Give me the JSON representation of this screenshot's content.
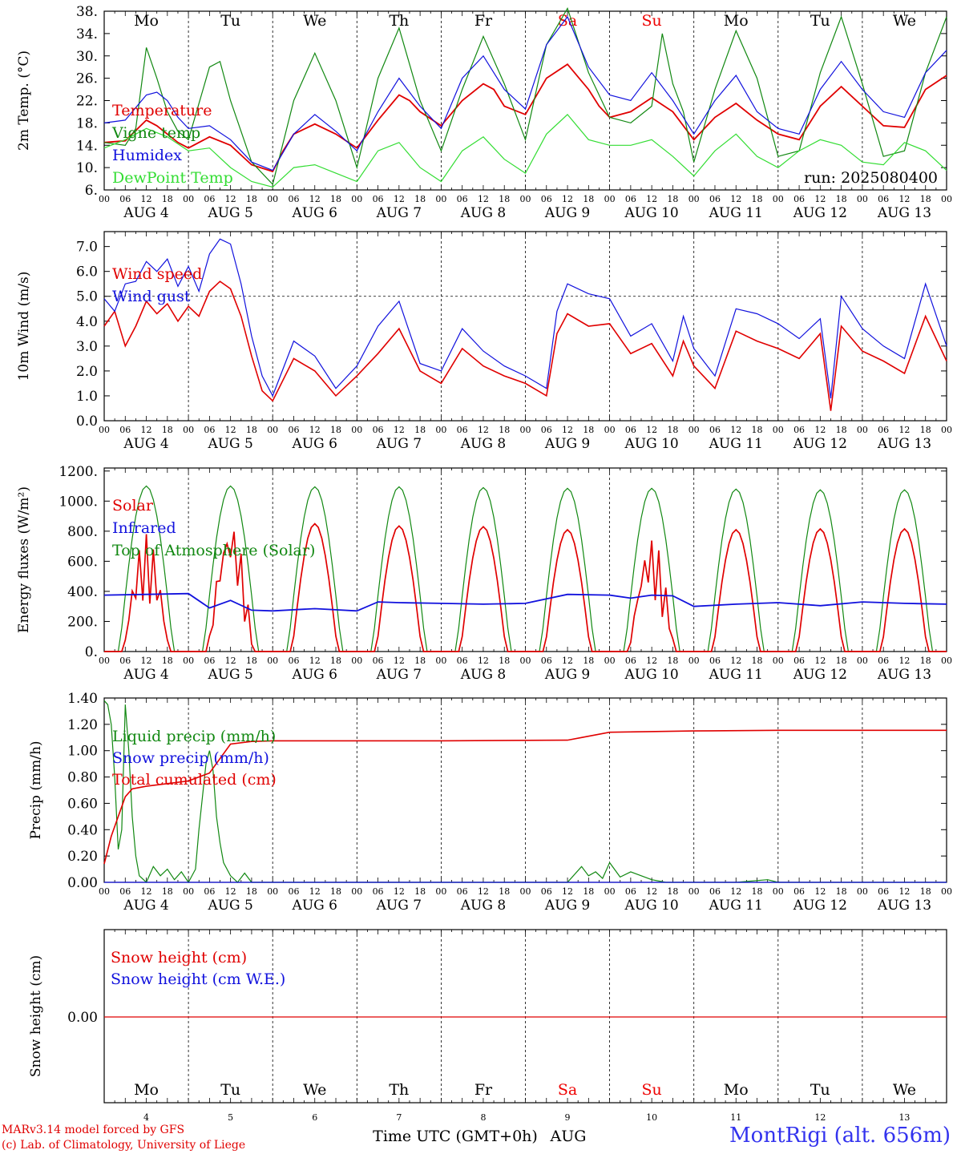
{
  "days": [
    "Mo",
    "Tu",
    "We",
    "Th",
    "Fr",
    "Sa",
    "Su",
    "Mo",
    "Tu",
    "We"
  ],
  "weekend_color": "#ee0000",
  "date_labels": [
    "AUG  4",
    "AUG  5",
    "AUG  6",
    "AUG  7",
    "AUG  8",
    "AUG  9",
    "AUG 10",
    "AUG 11",
    "AUG 12",
    "AUG 13"
  ],
  "hour_labels": [
    "00",
    "06",
    "12",
    "18"
  ],
  "bottom_dates": [
    "4",
    "5",
    "6",
    "7",
    "8",
    "9",
    "10",
    "11",
    "12",
    "13"
  ],
  "xlabel": "Time UTC (GMT+0h)",
  "xlabel_month": "AUG",
  "run_label": "run: 2025080400",
  "credits": [
    "MARv3.14 model forced by GFS",
    "(c) Lab. of Climatology, University of Liege"
  ],
  "station": "MontRigi (alt. 656m)",
  "chart_data": [
    {
      "type": "line",
      "ylabel": "2m Temp. (°C)",
      "yticks": [
        "38.",
        "34.",
        "30.",
        "26.",
        "22.",
        "18.",
        "14.",
        "10.",
        "6."
      ],
      "ylim": [
        6,
        38
      ],
      "x_unit": "hours since AUG 4 00 UTC",
      "grid": "vertical dashed at day boundaries",
      "series": [
        {
          "name": "Temperature",
          "color": "#e00000",
          "x": [
            0,
            6,
            12,
            15,
            18,
            21,
            24,
            30,
            36,
            42,
            48,
            51,
            54,
            60,
            66,
            72,
            78,
            84,
            87,
            90,
            96,
            102,
            108,
            111,
            114,
            120,
            126,
            132,
            138,
            141,
            144,
            150,
            156,
            162,
            168,
            174,
            180,
            186,
            192,
            198,
            204,
            210,
            216,
            222,
            228,
            234,
            240
          ],
          "y": [
            14.5,
            14.8,
            18.5,
            17.5,
            16,
            14.5,
            13.5,
            15.5,
            14,
            10.5,
            9.3,
            13,
            16,
            17.8,
            16,
            13.5,
            18.5,
            23,
            22,
            20,
            17.5,
            22,
            25,
            24,
            21,
            19.5,
            26,
            28.5,
            24,
            21,
            19,
            20,
            22.5,
            20,
            15,
            19,
            21.5,
            18.5,
            16,
            15,
            21,
            24.5,
            21,
            17.5,
            17.2,
            24,
            26.5
          ]
        },
        {
          "name": "Vigne temp",
          "color": "#118811",
          "x": [
            0,
            6,
            9,
            12,
            15,
            18,
            21,
            24,
            30,
            33,
            36,
            42,
            48,
            54,
            60,
            66,
            72,
            78,
            84,
            90,
            96,
            102,
            108,
            114,
            120,
            126,
            132,
            138,
            144,
            150,
            156,
            159,
            162,
            165,
            168,
            174,
            180,
            186,
            192,
            198,
            204,
            210,
            216,
            222,
            228,
            234,
            240
          ],
          "y": [
            14.5,
            14,
            17,
            31.5,
            26,
            20,
            16.5,
            15,
            28,
            29,
            22,
            11,
            7,
            22,
            30.5,
            22,
            10,
            26,
            35,
            22,
            13,
            24,
            33.5,
            25,
            15,
            32,
            38.5,
            27,
            19,
            18,
            21,
            34,
            25,
            20,
            11,
            24,
            34.5,
            26,
            12,
            13,
            27,
            37,
            25,
            12,
            13,
            27,
            37
          ]
        },
        {
          "name": "Humidex",
          "color": "#1111dd",
          "x": [
            0,
            6,
            12,
            15,
            18,
            21,
            24,
            30,
            36,
            42,
            48,
            54,
            60,
            66,
            72,
            78,
            84,
            90,
            96,
            102,
            108,
            114,
            120,
            126,
            132,
            138,
            144,
            150,
            156,
            162,
            168,
            174,
            180,
            186,
            192,
            198,
            204,
            210,
            216,
            222,
            228,
            234,
            240
          ],
          "y": [
            18,
            18.5,
            23,
            23.5,
            22,
            19,
            17,
            17.5,
            15,
            11,
            9.5,
            16,
            19.5,
            16.5,
            13,
            20,
            26,
            21,
            17,
            26,
            30,
            24,
            20.5,
            32,
            37,
            28,
            23,
            22,
            27,
            22,
            16,
            22,
            26.5,
            20,
            17,
            16,
            24,
            29,
            24,
            20,
            19,
            27,
            31
          ]
        },
        {
          "name": "DewPoint Temp",
          "color": "#33dd33",
          "x": [
            0,
            6,
            12,
            18,
            24,
            30,
            36,
            42,
            48,
            54,
            60,
            66,
            72,
            78,
            84,
            90,
            96,
            102,
            108,
            114,
            120,
            126,
            132,
            138,
            144,
            150,
            156,
            162,
            168,
            174,
            180,
            186,
            192,
            198,
            204,
            210,
            216,
            222,
            228,
            234,
            240
          ],
          "y": [
            13.5,
            15,
            17,
            15.5,
            13,
            13.5,
            10,
            7.5,
            6.5,
            10,
            10.5,
            9,
            7.5,
            13,
            14.5,
            10,
            7.5,
            13,
            15.5,
            11.5,
            9,
            16,
            19.5,
            15,
            14,
            14,
            15,
            12,
            8.5,
            13,
            16,
            12,
            10,
            13,
            15,
            14,
            11,
            10.5,
            14.5,
            13,
            9.5
          ]
        }
      ]
    },
    {
      "type": "line",
      "ylabel": "10m Wind (m/s)",
      "yticks": [
        "7.0",
        "6.0",
        "5.0",
        "4.0",
        "3.0",
        "2.0",
        "1.0",
        "0.0"
      ],
      "ylim": [
        0,
        7.6
      ],
      "reference_line": 5.0,
      "x_unit": "hours since AUG 4 00 UTC",
      "series": [
        {
          "name": "Wind speed",
          "color": "#e00000",
          "x": [
            0,
            3,
            6,
            9,
            12,
            15,
            18,
            21,
            24,
            27,
            30,
            33,
            36,
            39,
            42,
            45,
            48,
            54,
            60,
            66,
            72,
            78,
            84,
            90,
            96,
            102,
            108,
            114,
            120,
            126,
            129,
            132,
            138,
            144,
            150,
            156,
            162,
            165,
            168,
            174,
            180,
            186,
            192,
            198,
            204,
            207,
            210,
            216,
            222,
            228,
            234,
            240
          ],
          "y": [
            3.8,
            4.4,
            3,
            3.8,
            4.8,
            4.3,
            4.7,
            4,
            4.6,
            4.2,
            5.2,
            5.6,
            5.3,
            4.2,
            2.6,
            1.2,
            0.8,
            2.5,
            2,
            1,
            1.8,
            2.7,
            3.7,
            2,
            1.5,
            2.9,
            2.2,
            1.8,
            1.5,
            1.0,
            3.5,
            4.3,
            3.8,
            3.9,
            2.7,
            3.1,
            1.8,
            3.2,
            2.2,
            1.3,
            3.6,
            3.2,
            2.9,
            2.5,
            3.5,
            0.4,
            3.8,
            2.8,
            2.4,
            1.9,
            4.2,
            2.4
          ]
        },
        {
          "name": "Wind gust",
          "color": "#1111dd",
          "x": [
            0,
            3,
            6,
            9,
            12,
            15,
            18,
            21,
            24,
            27,
            30,
            33,
            36,
            39,
            42,
            45,
            48,
            54,
            60,
            66,
            72,
            78,
            84,
            90,
            96,
            102,
            108,
            114,
            120,
            126,
            129,
            132,
            138,
            144,
            150,
            156,
            162,
            165,
            168,
            174,
            180,
            186,
            192,
            198,
            204,
            207,
            210,
            216,
            222,
            228,
            234,
            240
          ],
          "y": [
            4.9,
            4.4,
            5.5,
            5.6,
            6.4,
            6.0,
            6.5,
            5.4,
            6.2,
            5.2,
            6.7,
            7.3,
            7.1,
            5.5,
            3.4,
            1.8,
            1.0,
            3.2,
            2.6,
            1.3,
            2.2,
            3.8,
            4.8,
            2.3,
            2.0,
            3.7,
            2.8,
            2.2,
            1.8,
            1.3,
            4.4,
            5.5,
            5.1,
            4.9,
            3.4,
            3.9,
            2.4,
            4.2,
            2.9,
            1.8,
            4.5,
            4.3,
            3.9,
            3.3,
            4.1,
            0.9,
            5.0,
            3.7,
            3.0,
            2.5,
            5.5,
            3.0
          ]
        }
      ]
    },
    {
      "type": "line",
      "ylabel": "Energy fluxes (W/m²)",
      "yticks": [
        "1200.",
        "1000.",
        "800.",
        "600.",
        "400.",
        "200.",
        "0."
      ],
      "ylim": [
        0,
        1220
      ],
      "x_unit": "hours since AUG 4 00 UTC",
      "series": [
        {
          "name": "Solar",
          "color": "#e00000",
          "daily_peak": [
            780,
            880,
            850,
            835,
            830,
            810,
            760,
            810,
            815,
            815
          ]
        },
        {
          "name": "Infrared",
          "color": "#1111dd",
          "x": [
            0,
            12,
            24,
            30,
            36,
            42,
            48,
            60,
            72,
            78,
            84,
            96,
            108,
            120,
            132,
            144,
            150,
            156,
            162,
            168,
            180,
            192,
            204,
            216,
            228,
            240
          ],
          "y": [
            375,
            380,
            385,
            290,
            340,
            275,
            270,
            285,
            270,
            330,
            325,
            320,
            315,
            320,
            380,
            375,
            355,
            375,
            370,
            300,
            315,
            325,
            305,
            330,
            320,
            315
          ]
        },
        {
          "name": "Top of Atmosphere (Solar)",
          "color": "#118811",
          "daily_peak": [
            1100,
            1100,
            1095,
            1095,
            1090,
            1085,
            1085,
            1080,
            1075,
            1075
          ]
        }
      ]
    },
    {
      "type": "line",
      "ylabel": "Precip (mm/h)",
      "yticks": [
        "1.40",
        "1.20",
        "1.00",
        "0.80",
        "0.60",
        "0.40",
        "0.20",
        "0.00"
      ],
      "ylim": [
        0,
        1.4
      ],
      "x_unit": "hours since AUG 4 00 UTC",
      "series": [
        {
          "name": "Liquid precip (mm/h)",
          "color": "#118811",
          "x": [
            0,
            1,
            2,
            3,
            4,
            5,
            6,
            7,
            8,
            9,
            10,
            12,
            14,
            16,
            18,
            20,
            22,
            24,
            26,
            27,
            28,
            29,
            30,
            31,
            32,
            33,
            34,
            36,
            38,
            40,
            42,
            48,
            84,
            132,
            136,
            138,
            140,
            142,
            144,
            147,
            150,
            156,
            160,
            180,
            189,
            192,
            240
          ],
          "y": [
            1.38,
            1.35,
            1.2,
            0.8,
            0.25,
            0.4,
            1.35,
            1.0,
            0.5,
            0.2,
            0.05,
            0,
            0.12,
            0.05,
            0.1,
            0.02,
            0.08,
            0,
            0.1,
            0.4,
            0.65,
            0.9,
            1.0,
            0.85,
            0.5,
            0.3,
            0.15,
            0.05,
            0,
            0.07,
            0,
            0,
            0,
            0,
            0.12,
            0.05,
            0.08,
            0.03,
            0.15,
            0.04,
            0.08,
            0.02,
            0,
            0,
            0.02,
            0,
            0
          ]
        },
        {
          "name": "Snow precip (mm/h)",
          "color": "#1111dd",
          "x": [
            0,
            240
          ],
          "y": [
            0,
            0
          ]
        },
        {
          "name": "Total cumulated (cm)",
          "color": "#e00000",
          "x": [
            0,
            2,
            4,
            6,
            8,
            10,
            12,
            18,
            24,
            30,
            36,
            42,
            48,
            72,
            90,
            96,
            132,
            136,
            144,
            168,
            192,
            240
          ],
          "y": [
            0.14,
            0.35,
            0.5,
            0.65,
            0.71,
            0.72,
            0.73,
            0.75,
            0.77,
            0.83,
            1.05,
            1.07,
            1.075,
            1.075,
            1.075,
            1.075,
            1.08,
            1.1,
            1.14,
            1.15,
            1.155,
            1.155
          ]
        }
      ]
    },
    {
      "type": "line",
      "ylabel": "Snow height (cm)",
      "yticks": [
        "0.00"
      ],
      "series": [
        {
          "name": "Snow height (cm)",
          "color": "#e00000",
          "x": [
            0,
            240
          ],
          "y": [
            0,
            0
          ]
        },
        {
          "name": "Snow height (cm W.E.)",
          "color": "#1111dd",
          "x": [
            0,
            240
          ],
          "y": [
            0,
            0
          ]
        }
      ]
    }
  ]
}
